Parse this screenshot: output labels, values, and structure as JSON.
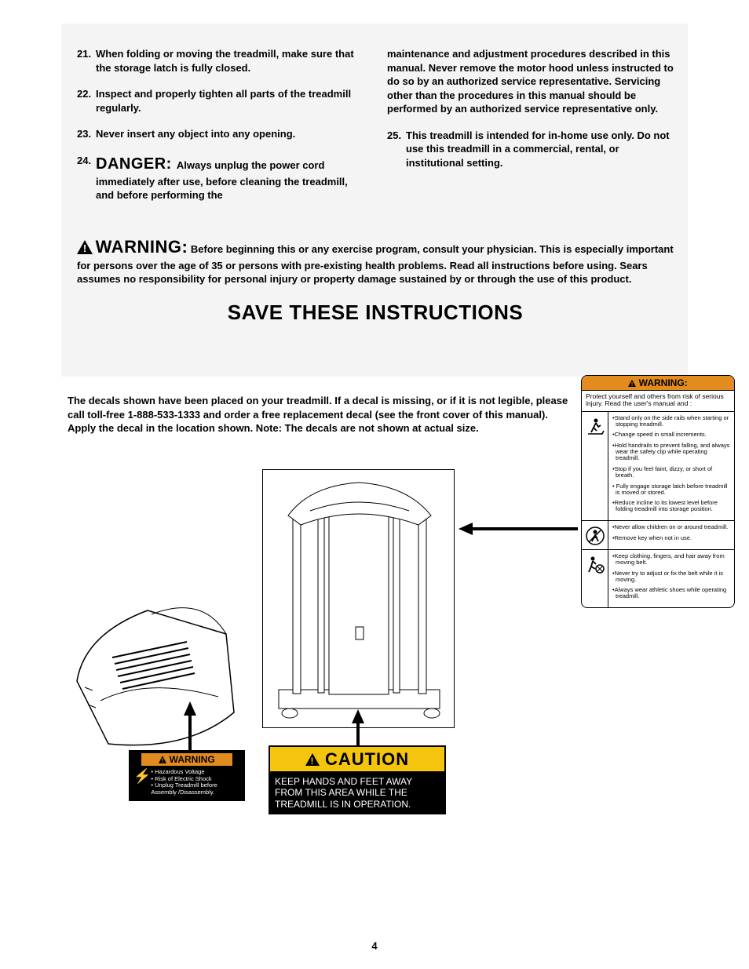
{
  "colors": {
    "page_bg": "#f4f4f4",
    "text": "#000000",
    "orange": "#e28b1e",
    "yellow": "#f4c40f",
    "black": "#000000",
    "white": "#ffffff"
  },
  "instructions": {
    "left": [
      {
        "num": "21.",
        "text": "When folding or moving the treadmill, make sure that the storage latch is fully closed."
      },
      {
        "num": "22.",
        "text": "Inspect and properly tighten all parts of the treadmill regularly."
      },
      {
        "num": "23.",
        "text": "Never insert any object into any opening."
      },
      {
        "num": "24.",
        "danger": "DANGER:",
        "text": "Always unplug the power cord immediately after use, before cleaning the treadmill, and before performing the"
      }
    ],
    "right_cont": "maintenance and adjustment procedures described in this manual. Never remove the motor hood unless instructed to do so by an authorized service representative. Servicing other than the procedures in this manual should be performed by an authorized service representative only.",
    "right": [
      {
        "num": "25.",
        "text": "This treadmill is intended for in-home use only. Do not use this treadmill in a commercial, rental, or institutional setting."
      }
    ]
  },
  "warning_word": "WARNING:",
  "warning_text": "Before beginning this or any exercise program, consult your physician. This is especially important for persons over the age of 35 or persons with pre-existing health problems. Read all instructions before using. Sears assumes no responsibility for personal injury or property damage sustained by or through the use of this product.",
  "save_heading": "SAVE THESE INSTRUCTIONS",
  "decal_intro": "The decals shown have been placed on your treadmill. If a decal is missing, or if it is not legible, please call toll-free 1-888-533-1333 and order a free replacement decal (see the front cover of this manual). Apply the decal in the location shown. Note: The decals are not shown at actual size.",
  "decal_warning_sm": {
    "header": "WARNING",
    "lines": [
      "• Hazardous Voltage",
      "• Risk of Electric Shock",
      "• Unplug Treadmill before Assembly /Disassembly."
    ]
  },
  "decal_caution": {
    "header": "CAUTION",
    "body": "KEEP HANDS AND FEET AWAY FROM THIS AREA WHILE THE TREADMILL IS IN OPERATION."
  },
  "decal_tall": {
    "header": "WARNING:",
    "intro": "Protect yourself and others from risk of serious injury. Read the user's manual and :",
    "sections": [
      {
        "icon": "treadmill-person",
        "bullets": [
          "•Stand only on the side rails when starting or stopping treadmill.",
          "•Change speed in small increments.",
          "•Hold handrails to prevent falling, and always wear the safety clip while operating treadmill.",
          "•Stop if you feel faint, dizzy, or short of breath.",
          "• Fully engage storage latch before treadmill is moved or stored.",
          "•Reduce incline to its lowest level before folding treadmill into storage position."
        ]
      },
      {
        "icon": "no-children",
        "bullets": [
          "•Never allow children on or around treadmill.",
          "•Remove key when not in use."
        ]
      },
      {
        "icon": "entanglement",
        "bullets": [
          "•Keep clothing, fingers, and hair away from moving belt.",
          "•Never try to adjust or fix the belt while it is moving.",
          "•Always wear athletic shoes while operating treadmill."
        ]
      }
    ]
  },
  "page_number": "4"
}
